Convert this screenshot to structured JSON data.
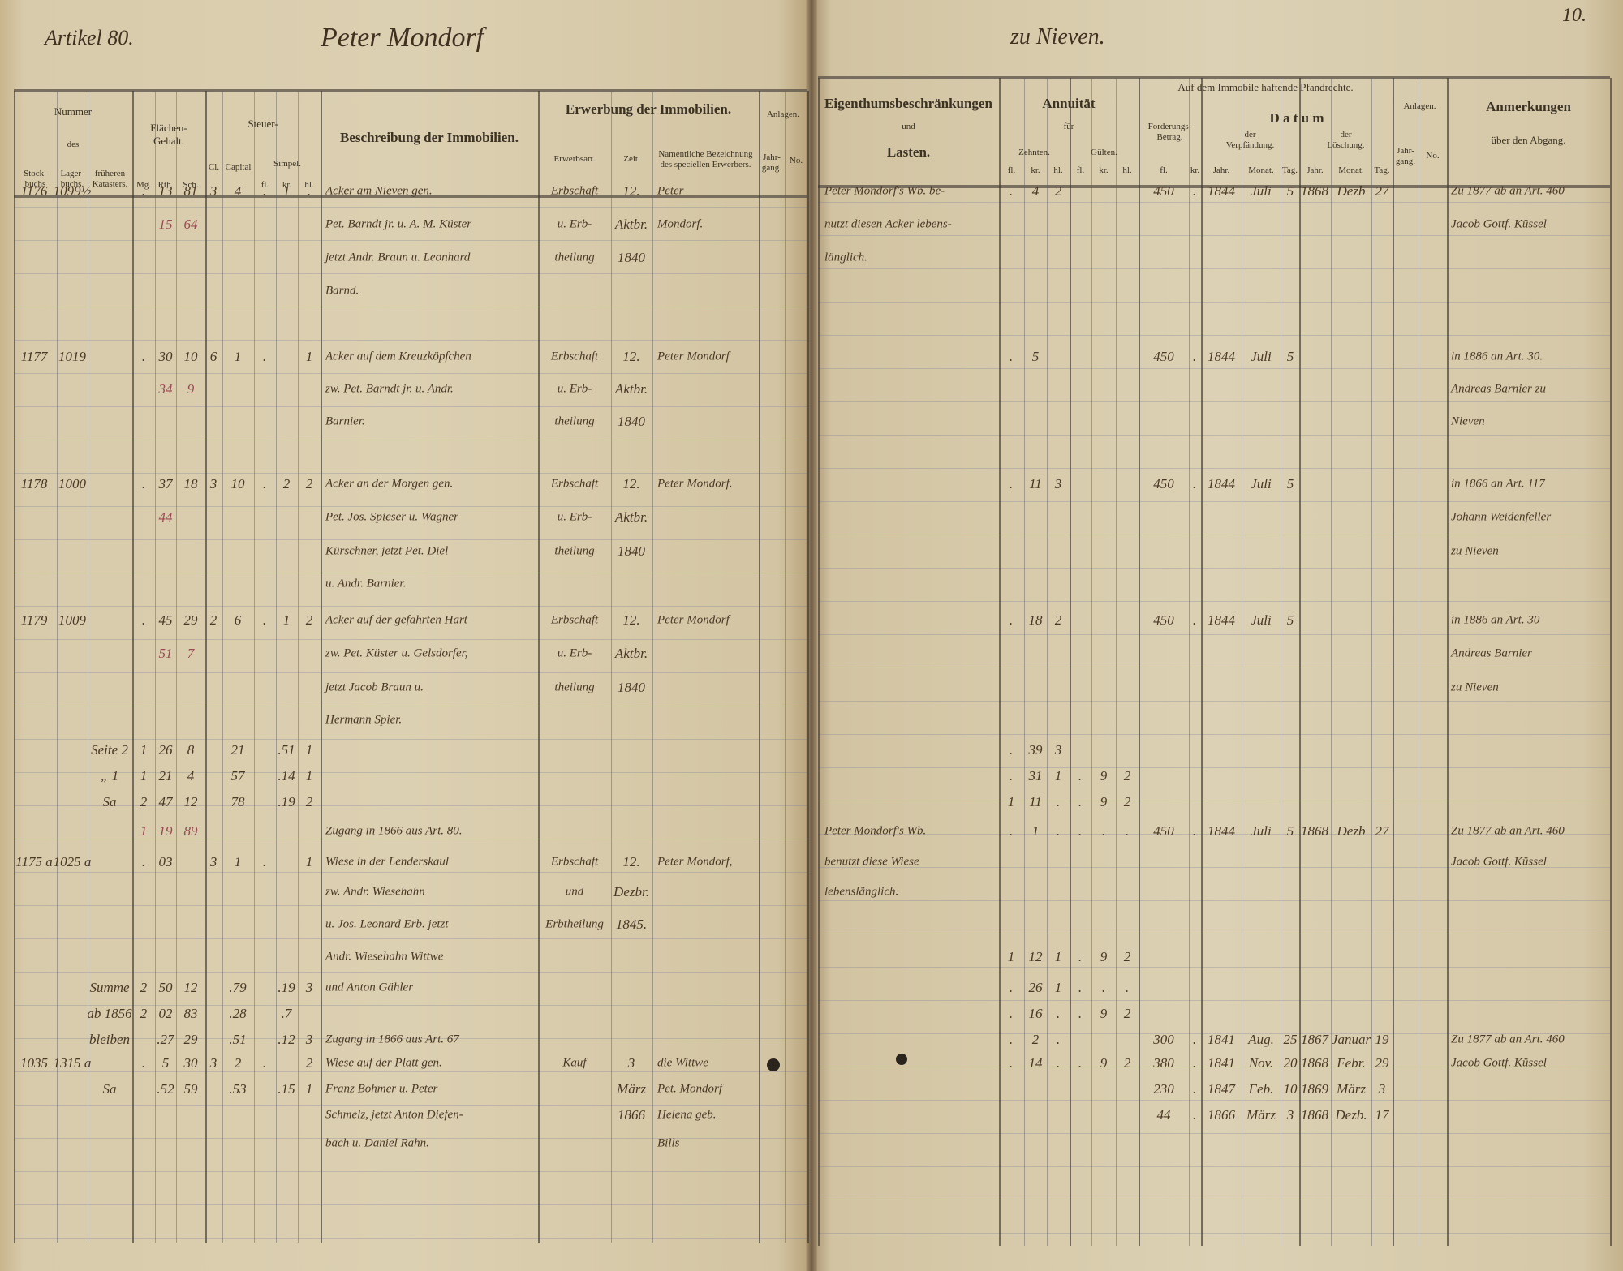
{
  "top": {
    "article": "Artikel 80.",
    "owner": "Peter Mondorf",
    "place": "zu Nieven.",
    "page_number": "10."
  },
  "left_header": {
    "nummer": "Nummer",
    "des": "des",
    "stockbuchs": "Stock-\nbuchs",
    "lagerbuchs": "Lager-\nbuchs.",
    "frueheren": "früheren\nKatasters.",
    "flaechen": "Flächen-\nGehalt.",
    "mg": "Mg.",
    "rth": "Rth.",
    "sch": "Sch.",
    "steuer": "Steuer-",
    "cl": "Cl.",
    "capital": "Capital",
    "simpel": "Simpel.",
    "fl": "fl.",
    "kr": "kr.",
    "hl": "hl.",
    "beschreibung": "Beschreibung der Immobilien.",
    "erwerbung": "Erwerbung der Immobilien.",
    "erwerbsart": "Erwerbsart.",
    "zeit": "Zeit.",
    "namentliche": "Namentliche Bezeichnung\ndes speciellen Erwerbers.",
    "anlagen": "Anlagen.",
    "jahrgang": "Jahr-\ngang.",
    "no": "No."
  },
  "right_header": {
    "eigenthum": "Eigenthumsbeschränkungen",
    "und": "und",
    "lasten": "Lasten.",
    "annuitaet": "Annuität",
    "fuer": "für",
    "zehnten": "Zehnten.",
    "gueltenh": "Gülten.",
    "fl": "fl.",
    "kr": "kr.",
    "hl": "hl.",
    "pfandrechte": "Auf dem Immobile haftende Pfandrechte.",
    "forderung": "Forderungs-\nBetrag.",
    "datum": "D a t u m",
    "verpfaendung": "der\nVerpfändung.",
    "loeschung": "der\nLöschung.",
    "jahr": "Jahr.",
    "monat": "Monat.",
    "tag": "Tag.",
    "anlagen": "Anlagen.",
    "jahrgang": "Jahr-\ngang.",
    "no": "No.",
    "anmerkungen": "Anmerkungen",
    "abgang": "über den Abgang."
  },
  "left_lines": [
    {
      "stock": "1176",
      "lager": "1099½",
      "mg": ".",
      "rth": "13",
      "sch": "81",
      "cl": "3",
      "cap": "4",
      "fl": ".",
      "kr": "1",
      "hl": ".",
      "besch": "Acker am Nieven gen.",
      "art": "Erbschaft",
      "zeit": "12.",
      "name": "Peter"
    },
    {
      "rth_red": "15",
      "sch_red": "64",
      "besch": "Pet. Barndt jr. u. A. M. Küster",
      "art": "u. Erb-",
      "zeit": "Aktbr.",
      "name": "Mondorf."
    },
    {
      "besch": "jetzt Andr. Braun u. Leonhard",
      "art": "theilung",
      "zeit": "1840"
    },
    {
      "besch": "Barnd."
    },
    {
      "stock": "1177",
      "lager": "1019",
      "mg": ".",
      "rth": "30",
      "sch": "10",
      "cl": "6",
      "cap": "1",
      "fl": ".",
      "hl": "1",
      "besch": "Acker auf dem Kreuzköpfchen",
      "art": "Erbschaft",
      "zeit": "12.",
      "name": "Peter Mondorf"
    },
    {
      "rth_red": "34",
      "sch_red": "9",
      "besch": "zw. Pet. Barndt jr. u. Andr.",
      "art": "u. Erb-",
      "zeit": "Aktbr."
    },
    {
      "besch": "Barnier.",
      "art": "theilung",
      "zeit": "1840"
    },
    {
      "stock": "1178",
      "lager": "1000",
      "mg": ".",
      "rth": "37",
      "sch": "18",
      "cl": "3",
      "cap": "10",
      "fl": ".",
      "kr": "2",
      "hl": "2",
      "besch": "Acker an der Morgen gen.",
      "art": "Erbschaft",
      "zeit": "12.",
      "name": "Peter Mondorf."
    },
    {
      "rth_red": "44",
      "besch": "Pet. Jos. Spieser u. Wagner",
      "art": "u. Erb-",
      "zeit": "Aktbr."
    },
    {
      "besch": "Kürschner, jetzt Pet. Diel",
      "art": "theilung",
      "zeit": "1840"
    },
    {
      "besch": "u. Andr. Barnier."
    },
    {
      "stock": "1179",
      "lager": "1009",
      "mg": ".",
      "rth": "45",
      "sch": "29",
      "cl": "2",
      "cap": "6",
      "fl": ".",
      "kr": "1",
      "hl": "2",
      "besch": "Acker auf der gefahrten Hart",
      "art": "Erbschaft",
      "zeit": "12.",
      "name": "Peter Mondorf"
    },
    {
      "rth_red": "51",
      "sch_red": "7",
      "besch": "zw. Pet. Küster u. Gelsdorfer,",
      "art": "u. Erb-",
      "zeit": "Aktbr."
    },
    {
      "besch": "jetzt Jacob Braun u.",
      "art": "theilung",
      "zeit": "1840"
    },
    {
      "besch": "Hermann Spier."
    },
    {
      "frueher": "Seite 2",
      "mg": "1",
      "rth": "26",
      "sch": "8",
      "cap": "21",
      "kr": ".51",
      "hl": "1"
    },
    {
      "frueher": "„ 1",
      "mg": "1",
      "rth": "21",
      "sch": "4",
      "cap": "57",
      "kr": ".14",
      "hl": "1"
    },
    {
      "frueher": "Sa",
      "mg": "2",
      "rth": "47",
      "sch": "12",
      "cap": "78",
      "kr": ".19",
      "hl": "2"
    },
    {
      "mg_red": "1",
      "rth_red": "19",
      "sch_red": "89",
      "besch": "Zugang in 1866 aus Art. 80."
    },
    {
      "stock": "1175 a",
      "lager": "1025 a",
      "mg": ".",
      "rth": "03",
      "cl": "3",
      "cap": "1",
      "fl": ".",
      "hl": "1",
      "besch": "Wiese in der Lenderskaul",
      "art": "Erbschaft",
      "zeit": "12.",
      "name": "Peter Mondorf,"
    },
    {
      "besch": "zw. Andr. Wiesehahn",
      "art": "und",
      "zeit": "Dezbr."
    },
    {
      "besch": "u. Jos. Leonard Erb. jetzt",
      "art": "Erbtheilung",
      "zeit": "1845."
    },
    {
      "besch": "Andr. Wiesehahn Wittwe"
    },
    {
      "besch": "und Anton Gähler",
      "frueher": "Summe",
      "mg": "2",
      "rth": "50",
      "sch": "12",
      "cap": ".79",
      "kr": ".19",
      "hl": "3"
    },
    {
      "frueher": "ab 1856",
      "mg": "2",
      "rth": "02",
      "sch": "83",
      "cap": ".28",
      "kr": ".7"
    },
    {
      "frueher": "bleiben",
      "rth": ".27",
      "sch": "29",
      "cap": ".51",
      "kr": ".12",
      "hl": "3",
      "besch": "Zugang in 1866 aus Art. 67"
    },
    {
      "stock": "1035",
      "lager": "1315 a",
      "mg": ".",
      "rth": "5",
      "sch": "30",
      "cl": "3",
      "cap": "2",
      "fl": ".",
      "hl": "2",
      "besch": "Wiese auf der Platt gen.",
      "art": "Kauf",
      "zeit": "3",
      "name": "die Wittwe"
    },
    {
      "frueher": "Sa",
      "rth": ".52",
      "sch": "59",
      "cap": ".53",
      "kr": ".15",
      "hl": "1",
      "besch": "Franz Bohmer u. Peter",
      "zeit": "März",
      "name": "Pet. Mondorf"
    },
    {
      "besch": "Schmelz, jetzt Anton Diefen-",
      "zeit": "1866",
      "name": "Helena geb."
    },
    {
      "besch": "bach u. Daniel Rahn.",
      "name": "Bills"
    }
  ],
  "right_lines": [
    {
      "lasten": "Peter Mondorf's Wb. be-",
      "zfl": ".",
      "zkr": "4",
      "zhl": "2",
      "ffl": "450",
      "fkr": ".",
      "vj": "1844",
      "vm": "Juli",
      "vt": "5",
      "lj": "1868",
      "lm": "Dezb",
      "lt": "27",
      "anm": "Zu 1877 ab an Art. 460"
    },
    {
      "lasten": "nutzt diesen Acker lebens-",
      "anm": "Jacob Gottf. Küssel"
    },
    {
      "lasten": "länglich."
    },
    {},
    {
      "zfl": ".",
      "zkr": "5",
      "ffl": "450",
      "fkr": ".",
      "vj": "1844",
      "vm": "Juli",
      "vt": "5",
      "anm": "in 1886 an Art. 30."
    },
    {
      "anm": "Andreas Barnier zu"
    },
    {
      "anm": "Nieven"
    },
    {
      "zfl": ".",
      "zkr": "11",
      "zhl": "3",
      "ffl": "450",
      "fkr": ".",
      "vj": "1844",
      "vm": "Juli",
      "vt": "5",
      "anm": "in 1866 an Art. 117"
    },
    {
      "anm": "Johann Weidenfeller"
    },
    {
      "anm": "zu Nieven"
    },
    {},
    {
      "zfl": ".",
      "zkr": "18",
      "zhl": "2",
      "ffl": "450",
      "fkr": ".",
      "vj": "1844",
      "vm": "Juli",
      "vt": "5",
      "anm": "in 1886 an Art. 30"
    },
    {
      "anm": "Andreas Barnier"
    },
    {
      "anm": "zu Nieven"
    },
    {},
    {
      "zfl": ".",
      "zkr": "39",
      "zhl": "3"
    },
    {
      "zfl": ".",
      "zkr": "31",
      "zhl": "1",
      "gfl": ".",
      "gkr": "9",
      "ghl": "2"
    },
    {
      "zfl": "1",
      "zkr": "11",
      "zhl": ".",
      "gfl": ".",
      "gkr": "9",
      "ghl": "2"
    },
    {
      "lasten": "Peter Mondorf's Wb.",
      "zfl": ".",
      "zkr": "1",
      "zhl": ".",
      "gfl": ".",
      "gkr": ".",
      "ghl": ".",
      "ffl": "450",
      "fkr": ".",
      "vj": "1844",
      "vm": "Juli",
      "vt": "5",
      "lj": "1868",
      "lm": "Dezb",
      "lt": "27",
      "anm": "Zu 1877 ab an Art. 460"
    },
    {
      "lasten": "benutzt diese Wiese",
      "anm": "Jacob Gottf. Küssel"
    },
    {
      "lasten": "lebenslänglich."
    },
    {},
    {
      "zfl": "1",
      "zkr": "12",
      "zhl": "1",
      "gfl": ".",
      "gkr": "9",
      "ghl": "2"
    },
    {
      "zfl": ".",
      "zkr": "26",
      "zhl": "1",
      "gfl": ".",
      "gkr": ".",
      "ghl": "."
    },
    {
      "zfl": ".",
      "zkr": "16",
      "zhl": ".",
      "gfl": ".",
      "gkr": "9",
      "ghl": "2"
    },
    {
      "zfl": ".",
      "zkr": "2",
      "zhl": ".",
      "ffl": "300",
      "fkr": ".",
      "vj": "1841",
      "vm": "Aug.",
      "vt": "25",
      "lj": "1867",
      "lm": "Januar",
      "lt": "19",
      "anm": "Zu 1877 ab an Art. 460"
    },
    {
      "zfl": ".",
      "zkr": "14",
      "zhl": ".",
      "gfl": ".",
      "gkr": "9",
      "ghl": "2",
      "ffl": "380",
      "fkr": ".",
      "vj": "1841",
      "vm": "Nov.",
      "vt": "20",
      "lj": "1868",
      "lm": "Febr.",
      "lt": "29",
      "anm": "Jacob Gottf. Küssel"
    },
    {
      "ffl": "230",
      "fkr": ".",
      "vj": "1847",
      "vm": "Feb.",
      "vt": "10",
      "lj": "1869",
      "lm": "März",
      "lt": "3"
    },
    {
      "ffl": "44",
      "fkr": ".",
      "vj": "1866",
      "vm": "März",
      "vt": "3",
      "lj": "1868",
      "lm": "Dezb.",
      "lt": "17"
    },
    {}
  ]
}
